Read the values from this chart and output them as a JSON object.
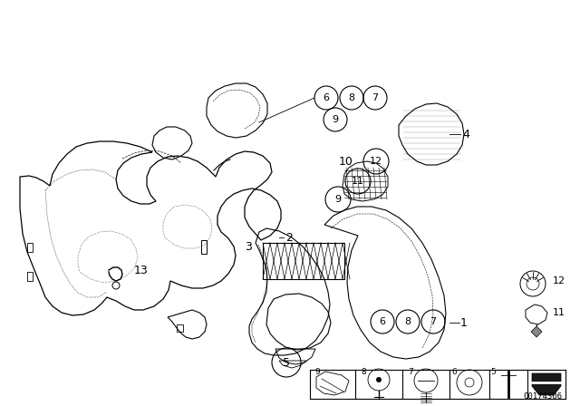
{
  "bg_color": "#ffffff",
  "diagram_number": "00174306",
  "line_color": "#000000",
  "text_color": "#000000"
}
